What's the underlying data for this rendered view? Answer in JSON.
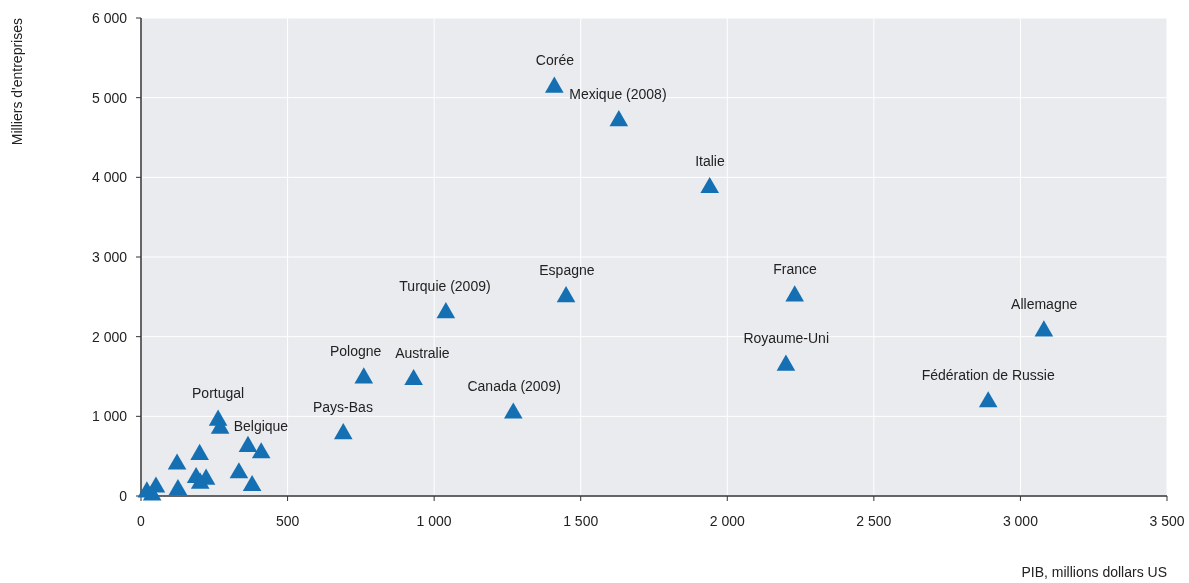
{
  "chart_data": {
    "type": "scatter",
    "xlabel": "PIB, millions dollars US",
    "ylabel": "Milliers d'entreprises",
    "x": [
      1410,
      1630,
      1940,
      2230,
      3080,
      2200,
      2890,
      1450,
      1040,
      1270,
      760,
      930,
      690,
      263,
      270,
      410,
      200,
      365,
      123,
      188,
      222,
      202,
      334,
      379,
      126,
      51,
      20,
      38
    ],
    "series": [
      {
        "color": "#1470b3",
        "values": [
          5130,
          4710,
          3870,
          2510,
          2070,
          1640,
          1180,
          2500,
          2300,
          1040,
          1480,
          1460,
          780,
          950,
          850,
          540,
          520,
          620,
          400,
          230,
          210,
          160,
          290,
          130,
          80,
          110,
          50,
          10
        ]
      }
    ],
    "xlim": [
      0,
      3500
    ],
    "xticks": [
      0,
      500,
      {
        "value": 1000,
        "label": "1 000"
      },
      {
        "value": 1500,
        "label": "1 500"
      },
      {
        "value": 2000,
        "label": "2 000"
      },
      {
        "value": 2500,
        "label": "2 500"
      },
      {
        "value": 3000,
        "label": "3 000"
      },
      {
        "value": 3500,
        "label": "3 500"
      }
    ],
    "ylim": [
      0,
      6000
    ],
    "yticks": [
      0,
      {
        "value": 1000,
        "label": "1 000"
      },
      {
        "value": 2000,
        "label": "2 000"
      },
      {
        "value": 3000,
        "label": "3 000"
      },
      {
        "value": 4000,
        "label": "4 000"
      },
      {
        "value": 5000,
        "label": "5 000"
      },
      {
        "value": 6000,
        "label": "6 000"
      }
    ],
    "grid": true,
    "marker": "triangle",
    "annotations": [
      {
        "text": "Corée",
        "x": 1412,
        "y": 5134
      },
      {
        "text": "Mexique (2008)",
        "x": 1627,
        "y": 4707
      },
      {
        "text": "Italie",
        "x": 1941,
        "y": 3866
      },
      {
        "text": "France",
        "x": 2231,
        "y": 2510
      },
      {
        "text": "Allemagne",
        "x": 3081,
        "y": 2071
      },
      {
        "text": "Royaume-Uni",
        "x": 2201,
        "y": 1644
      },
      {
        "text": "Fédération de Russie",
        "x": 2890,
        "y": 1180
      },
      {
        "text": "Espagne",
        "x": 1453,
        "y": 2498
      },
      {
        "text": "Turquie (2009)",
        "x": 1037,
        "y": 2297
      },
      {
        "text": "Canada (2009)",
        "x": 1273,
        "y": 1042
      },
      {
        "text": "Pologne",
        "x": 761,
        "y": 1481
      },
      {
        "text": "Australie",
        "x": 931,
        "y": 1456
      },
      {
        "text": "Pays-Bas",
        "x": 689,
        "y": 778
      },
      {
        "text": "Portugal",
        "x": 263,
        "y": 954
      },
      {
        "text": "Belgique",
        "x": 409,
        "y": 540
      }
    ]
  }
}
